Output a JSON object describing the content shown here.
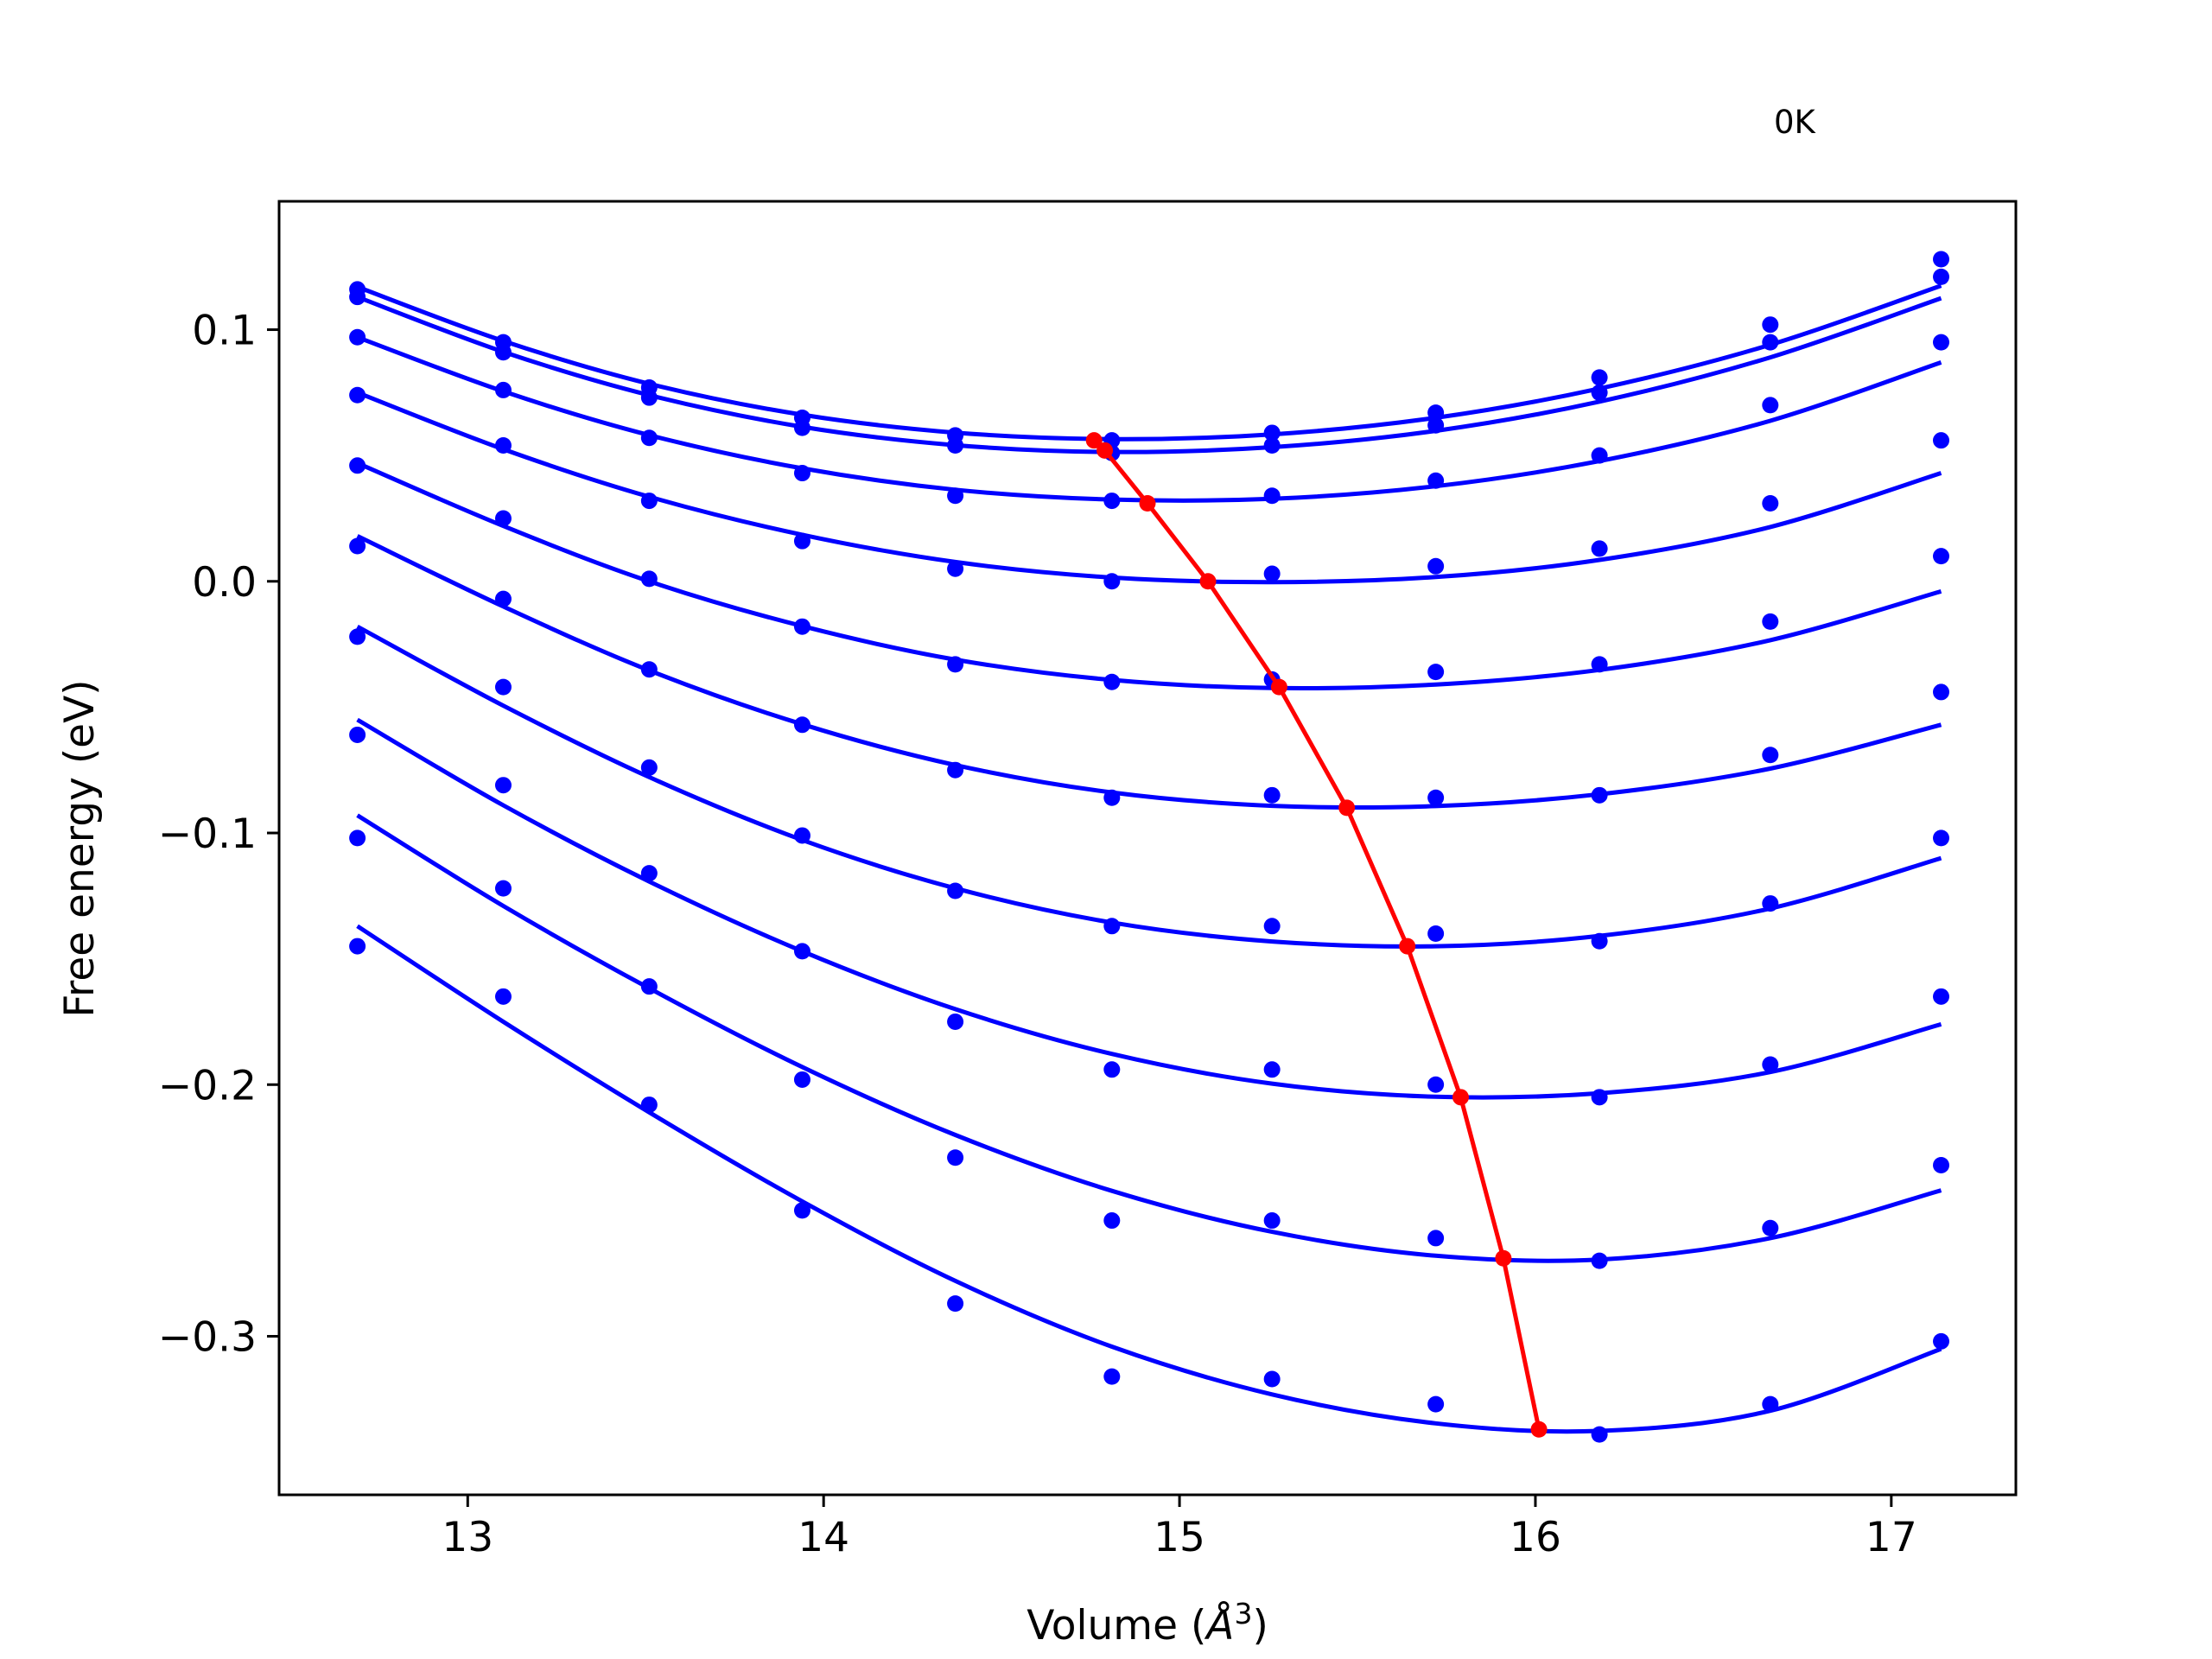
{
  "chart_data": {
    "type": "scatter",
    "title": "",
    "annotation": "0K",
    "xlabel": "Volume ($\\AA^3$)",
    "xlabel_parts": {
      "prefix": "Volume (",
      "symbol": "Å",
      "superscript": "3",
      "suffix": ")"
    },
    "ylabel": "Free energy (eV)",
    "xlim": [
      12.47,
      17.35
    ],
    "ylim": [
      -0.363,
      0.151
    ],
    "xticks": [
      13,
      14,
      15,
      16,
      17
    ],
    "xtick_labels": [
      "13",
      "14",
      "15",
      "16",
      "17"
    ],
    "yticks": [
      0.1,
      0.0,
      -0.1,
      -0.2,
      -0.3
    ],
    "ytick_labels": [
      "0.1",
      "0.0",
      "−0.1",
      "−0.2",
      "−0.3"
    ],
    "grid": false,
    "legend": "none",
    "colors": {
      "curves": "#0000ff",
      "minima": "#ff0000"
    },
    "x": [
      12.69,
      13.1,
      13.51,
      13.94,
      14.37,
      14.81,
      15.26,
      15.72,
      16.18,
      16.66,
      17.14
    ],
    "series": [
      {
        "points": [
          0.116,
          0.095,
          0.077,
          0.065,
          0.058,
          0.056,
          0.059,
          0.067,
          0.081,
          0.102,
          0.128
        ],
        "fit_x": [
          12.69,
          13.1,
          13.51,
          13.94,
          14.37,
          14.81,
          15.26,
          15.72,
          16.18,
          16.66,
          17.14
        ],
        "fit_y": [
          0.117,
          0.0955,
          0.0785,
          0.0662,
          0.0591,
          0.0565,
          0.0584,
          0.065,
          0.0766,
          0.094,
          0.1175
        ]
      },
      {
        "points": [
          0.113,
          0.091,
          0.073,
          0.061,
          0.054,
          0.051,
          0.054,
          0.062,
          0.075,
          0.095,
          0.121
        ],
        "fit_x": [
          12.69,
          13.1,
          13.51,
          13.94,
          14.37,
          14.81,
          15.26,
          15.72,
          16.18,
          16.66,
          17.14
        ],
        "fit_y": [
          0.113,
          0.0912,
          0.074,
          0.0614,
          0.0541,
          0.0514,
          0.0533,
          0.0598,
          0.0714,
          0.089,
          0.1125
        ]
      },
      {
        "points": [
          0.097,
          0.076,
          0.057,
          0.043,
          0.034,
          0.032,
          0.034,
          0.04,
          0.05,
          0.07,
          0.095
        ],
        "fit_x": [
          12.69,
          13.1,
          13.51,
          13.94,
          14.37,
          14.81,
          15.26,
          15.72,
          16.18,
          16.66,
          17.14
        ],
        "fit_y": [
          0.097,
          0.0755,
          0.0581,
          0.0449,
          0.0364,
          0.0325,
          0.0328,
          0.0378,
          0.0478,
          0.0638,
          0.087
        ]
      },
      {
        "points": [
          0.074,
          0.054,
          0.032,
          0.016,
          0.005,
          0.0,
          0.003,
          0.006,
          0.013,
          0.031,
          0.056
        ],
        "fit_x": [
          12.69,
          13.1,
          13.51,
          13.94,
          14.37,
          14.81,
          15.26,
          15.72,
          16.18,
          16.66,
          17.14
        ],
        "fit_y": [
          0.075,
          0.0525,
          0.0336,
          0.0185,
          0.0077,
          0.0015,
          -0.0003,
          0.0017,
          0.0085,
          0.0216,
          0.043
        ]
      },
      {
        "points": [
          0.046,
          0.025,
          0.001,
          -0.018,
          -0.033,
          -0.04,
          -0.039,
          -0.036,
          -0.033,
          -0.016,
          0.01
        ],
        "fit_x": [
          12.69,
          13.1,
          13.51,
          13.94,
          14.37,
          14.81,
          15.26,
          15.72,
          16.18,
          16.66,
          17.14
        ],
        "fit_y": [
          0.047,
          0.022,
          0.0,
          -0.0178,
          -0.0311,
          -0.0392,
          -0.0424,
          -0.041,
          -0.0352,
          -0.0234,
          -0.004
        ]
      },
      {
        "points": [
          0.014,
          -0.007,
          -0.035,
          -0.057,
          -0.075,
          -0.086,
          -0.085,
          -0.086,
          -0.085,
          -0.069,
          -0.044
        ],
        "fit_x": [
          12.69,
          13.1,
          13.51,
          13.94,
          14.37,
          14.81,
          15.26,
          15.72,
          16.18,
          16.66,
          17.14
        ],
        "fit_y": [
          0.018,
          -0.01,
          -0.0354,
          -0.0568,
          -0.073,
          -0.0839,
          -0.0892,
          -0.0893,
          -0.0846,
          -0.0744,
          -0.057
        ]
      },
      {
        "points": [
          -0.022,
          -0.042,
          -0.074,
          -0.101,
          -0.123,
          -0.137,
          -0.137,
          -0.14,
          -0.143,
          -0.128,
          -0.102
        ],
        "fit_x": [
          12.69,
          13.1,
          13.51,
          13.94,
          14.37,
          14.81,
          15.26,
          15.72,
          16.18,
          16.66,
          17.14
        ],
        "fit_y": [
          -0.018,
          -0.0494,
          -0.0778,
          -0.1028,
          -0.122,
          -0.1356,
          -0.1431,
          -0.145,
          -0.1409,
          -0.13,
          -0.11
        ]
      },
      {
        "points": [
          -0.061,
          -0.081,
          -0.116,
          -0.147,
          -0.175,
          -0.194,
          -0.194,
          -0.2,
          -0.205,
          -0.192,
          -0.165
        ],
        "fit_x": [
          12.69,
          13.1,
          13.51,
          13.94,
          14.37,
          14.81,
          15.26,
          15.72,
          16.18,
          16.66,
          17.14
        ],
        "fit_y": [
          -0.055,
          -0.089,
          -0.1193,
          -0.147,
          -0.17,
          -0.1878,
          -0.1996,
          -0.2048,
          -0.2034,
          -0.195,
          -0.176
        ]
      },
      {
        "points": [
          -0.102,
          -0.122,
          -0.161,
          -0.198,
          -0.229,
          -0.254,
          -0.254,
          -0.261,
          -0.27,
          -0.257,
          -0.232
        ],
        "fit_x": [
          12.69,
          13.1,
          13.51,
          13.94,
          14.37,
          14.81,
          15.26,
          15.72,
          16.18,
          16.66,
          17.14
        ],
        "fit_y": [
          -0.093,
          -0.129,
          -0.1617,
          -0.193,
          -0.22,
          -0.2422,
          -0.2585,
          -0.268,
          -0.2695,
          -0.261,
          -0.242
        ]
      },
      {
        "points": [
          -0.145,
          -0.165,
          -0.208,
          -0.25,
          -0.287,
          -0.316,
          -0.317,
          -0.327,
          -0.339,
          -0.327,
          -0.302
        ],
        "fit_x": [
          12.69,
          13.1,
          13.51,
          13.94,
          14.37,
          14.81,
          15.26,
          15.72,
          16.18,
          16.66,
          17.14
        ],
        "fit_y": [
          -0.137,
          -0.175,
          -0.211,
          -0.2464,
          -0.278,
          -0.3041,
          -0.3231,
          -0.3346,
          -0.3376,
          -0.3296,
          -0.305
        ]
      }
    ],
    "minima": {
      "x": [
        14.76,
        14.79,
        14.91,
        15.08,
        15.28,
        15.47,
        15.64,
        15.79,
        15.91,
        16.01
      ],
      "y": [
        0.056,
        0.052,
        0.031,
        0.0,
        -0.042,
        -0.09,
        -0.145,
        -0.205,
        -0.269,
        -0.337
      ]
    }
  }
}
